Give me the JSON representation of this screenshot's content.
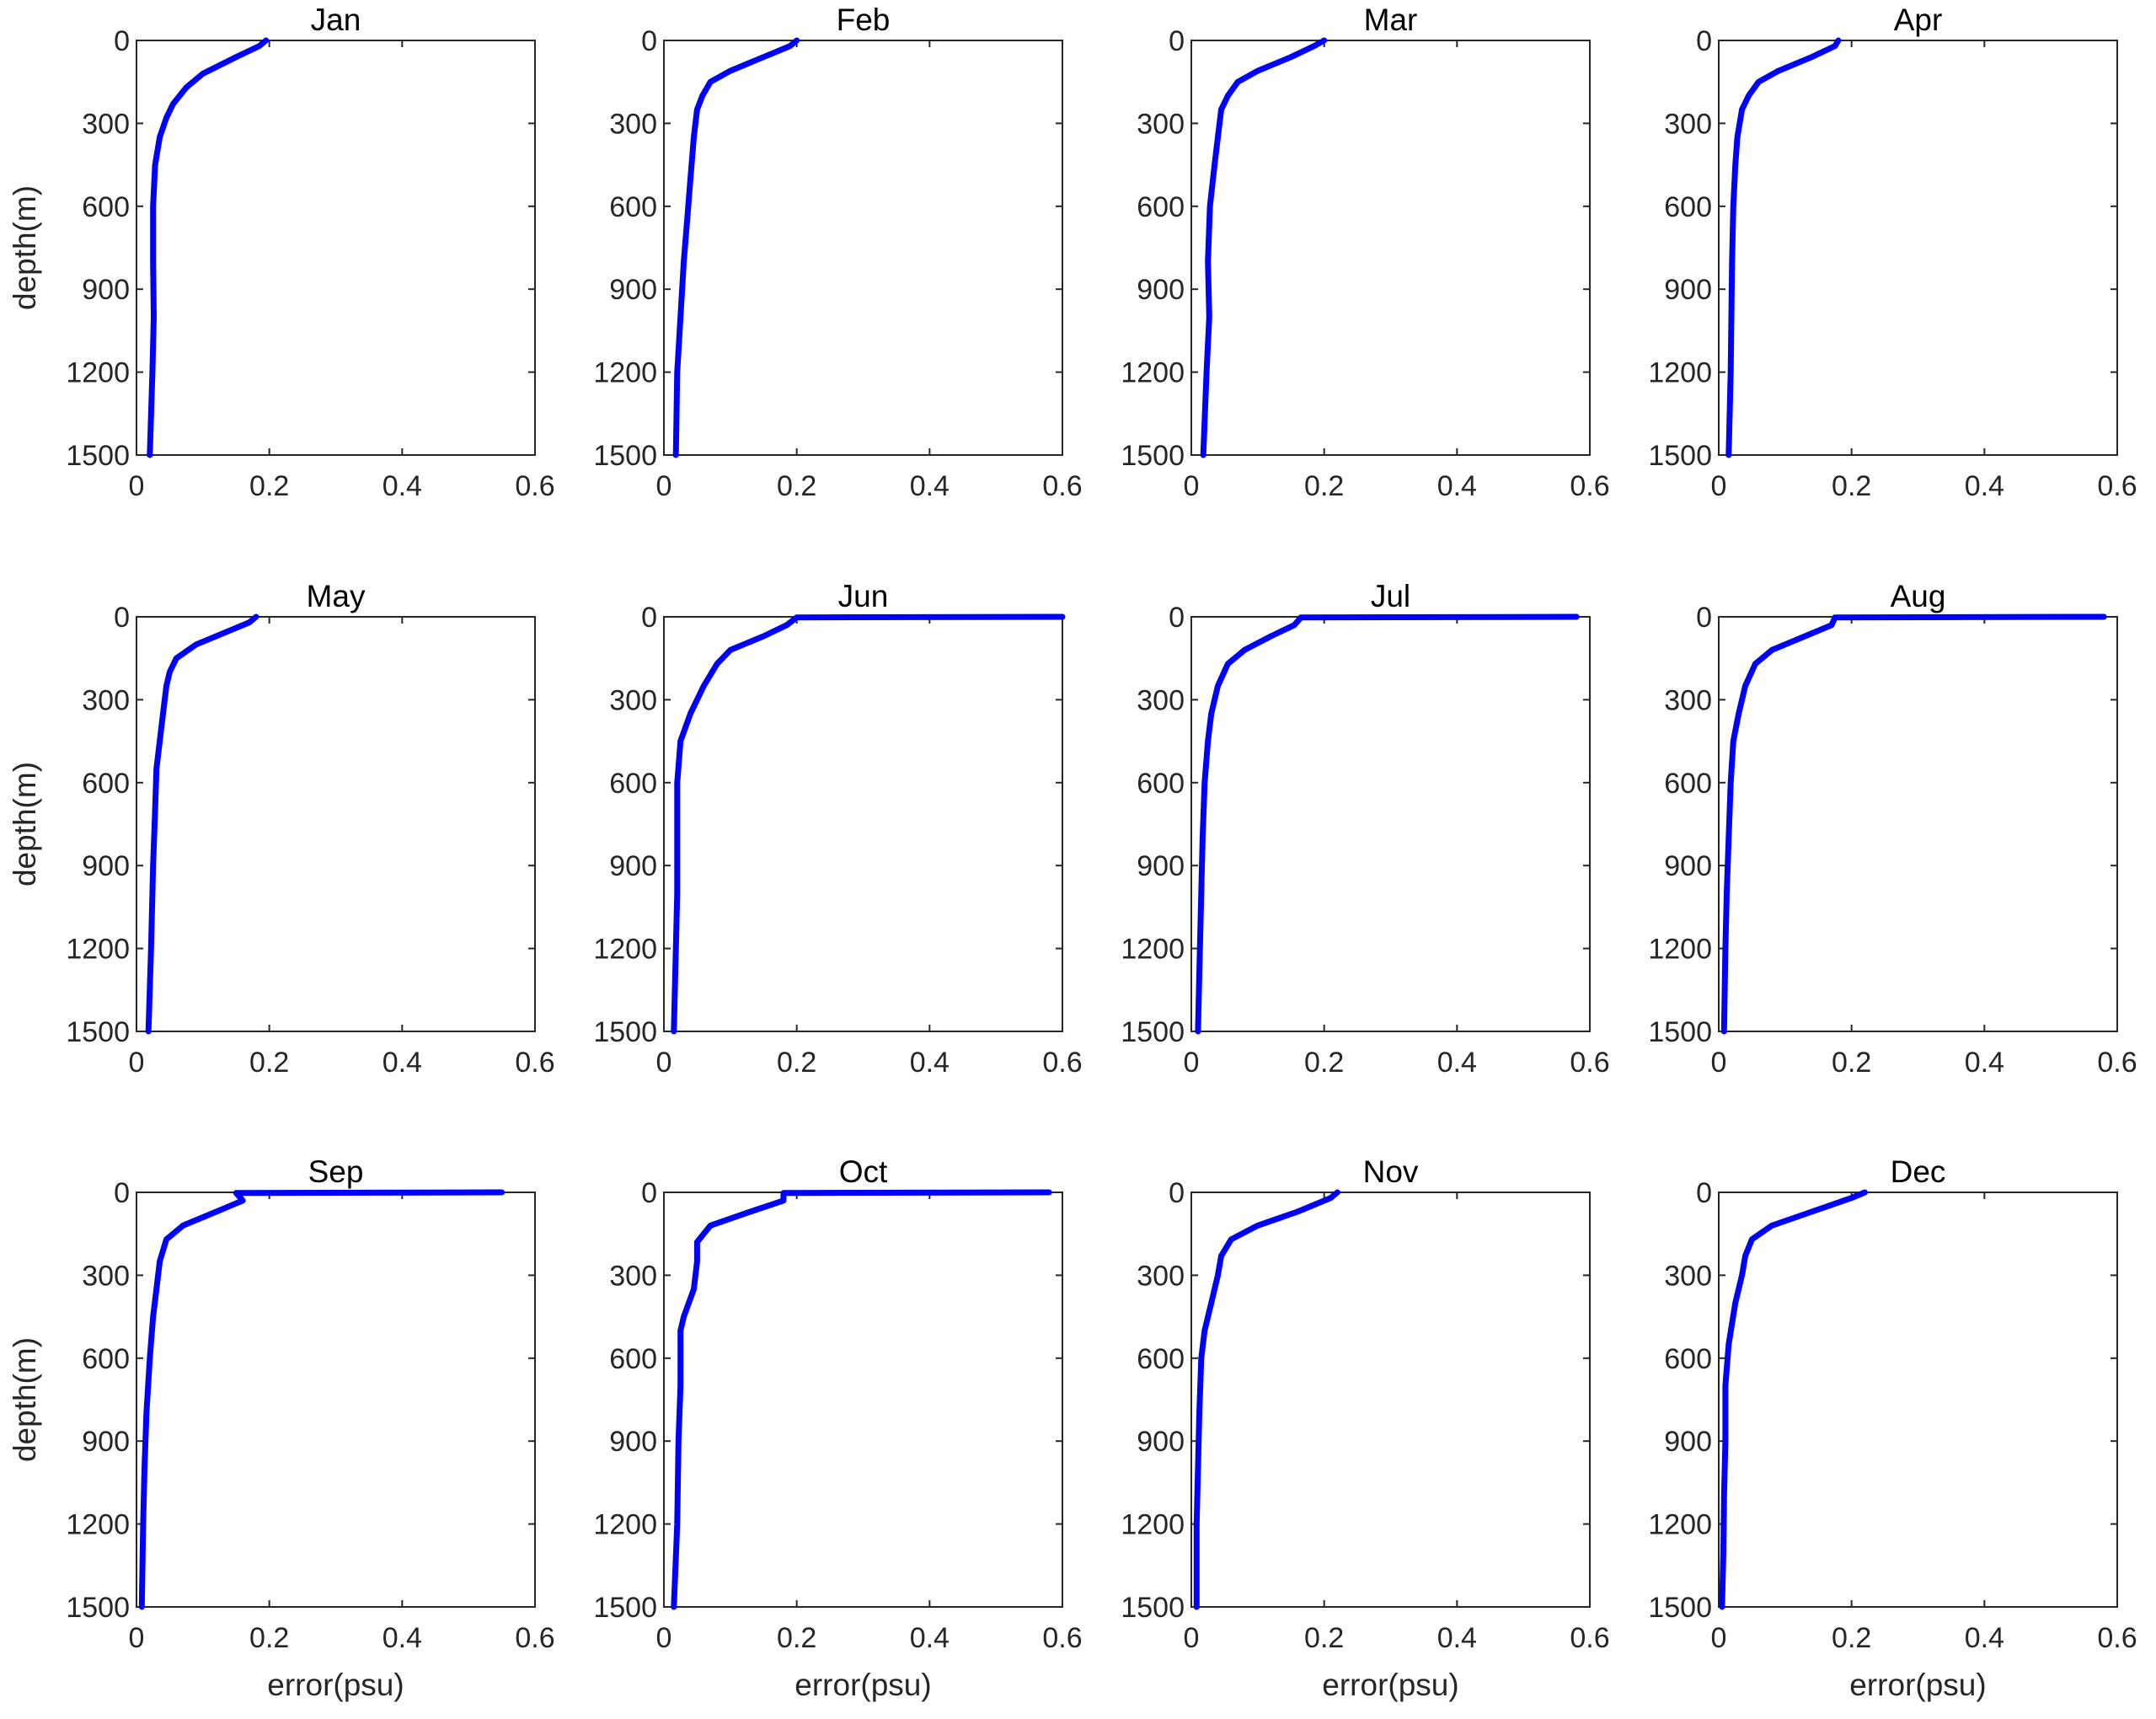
{
  "chart_data": {
    "type": "line",
    "layout": "3x4 small multiples",
    "line_color": "#0000ff",
    "frame_color": "#262626",
    "xlabel": "error(psu)",
    "ylabel": "depth(m)",
    "xlim": [
      0,
      0.6
    ],
    "ylim": [
      1500,
      0
    ],
    "y_reversed": true,
    "grid": false,
    "xticks": [
      0,
      0.2,
      0.4,
      0.6
    ],
    "xtick_labels": [
      "0",
      "0.2",
      "0.4",
      "0.6"
    ],
    "yticks": [
      0,
      300,
      600,
      900,
      1200,
      1500
    ],
    "ytick_labels": [
      "0",
      "300",
      "600",
      "900",
      "1200",
      "1500"
    ],
    "panels": [
      {
        "title": "Jan",
        "x": [
          0.195,
          0.185,
          0.15,
          0.1,
          0.075,
          0.055,
          0.045,
          0.035,
          0.028,
          0.025,
          0.025,
          0.026,
          0.024,
          0.02
        ],
        "y": [
          0,
          20,
          60,
          120,
          170,
          230,
          280,
          350,
          450,
          600,
          800,
          1000,
          1200,
          1500
        ]
      },
      {
        "title": "Feb",
        "x": [
          0.2,
          0.19,
          0.15,
          0.1,
          0.07,
          0.058,
          0.05,
          0.045,
          0.04,
          0.035,
          0.03,
          0.025,
          0.02,
          0.018
        ],
        "y": [
          0,
          20,
          60,
          110,
          150,
          200,
          250,
          350,
          500,
          650,
          800,
          1000,
          1200,
          1500
        ]
      },
      {
        "title": "Mar",
        "x": [
          0.2,
          0.185,
          0.15,
          0.1,
          0.07,
          0.055,
          0.045,
          0.04,
          0.035,
          0.028,
          0.025,
          0.027,
          0.023,
          0.018
        ],
        "y": [
          0,
          20,
          60,
          110,
          150,
          200,
          250,
          350,
          450,
          600,
          800,
          1000,
          1200,
          1500
        ]
      },
      {
        "title": "Apr",
        "x": [
          0.18,
          0.175,
          0.14,
          0.09,
          0.06,
          0.045,
          0.035,
          0.028,
          0.025,
          0.022,
          0.02,
          0.019,
          0.018,
          0.015
        ],
        "y": [
          0,
          20,
          60,
          110,
          150,
          200,
          250,
          350,
          450,
          600,
          800,
          1000,
          1200,
          1500
        ]
      },
      {
        "title": "May",
        "x": [
          0.18,
          0.17,
          0.13,
          0.09,
          0.06,
          0.05,
          0.045,
          0.04,
          0.035,
          0.03,
          0.028,
          0.025,
          0.022,
          0.018
        ],
        "y": [
          0,
          20,
          60,
          100,
          150,
          200,
          250,
          350,
          450,
          550,
          700,
          900,
          1200,
          1500
        ]
      },
      {
        "title": "Jun",
        "x": [
          0.6,
          0.2,
          0.185,
          0.15,
          0.1,
          0.08,
          0.06,
          0.04,
          0.025,
          0.02,
          0.02,
          0.02,
          0.018,
          0.015
        ],
        "y": [
          0,
          2,
          30,
          70,
          120,
          170,
          250,
          350,
          450,
          600,
          800,
          1000,
          1200,
          1500
        ]
      },
      {
        "title": "Jul",
        "x": [
          0.58,
          0.165,
          0.155,
          0.12,
          0.08,
          0.055,
          0.04,
          0.03,
          0.025,
          0.02,
          0.017,
          0.015,
          0.013,
          0.01
        ],
        "y": [
          0,
          2,
          30,
          70,
          120,
          170,
          250,
          350,
          450,
          600,
          800,
          1000,
          1200,
          1500
        ]
      },
      {
        "title": "Aug",
        "x": [
          0.58,
          0.175,
          0.17,
          0.13,
          0.08,
          0.055,
          0.04,
          0.03,
          0.022,
          0.018,
          0.015,
          0.012,
          0.01,
          0.008
        ],
        "y": [
          0,
          2,
          30,
          70,
          120,
          170,
          250,
          350,
          450,
          600,
          800,
          1000,
          1200,
          1500
        ]
      },
      {
        "title": "Sep",
        "x": [
          0.55,
          0.15,
          0.16,
          0.12,
          0.07,
          0.045,
          0.035,
          0.03,
          0.025,
          0.02,
          0.015,
          0.012,
          0.01,
          0.008
        ],
        "y": [
          0,
          2,
          30,
          70,
          120,
          170,
          250,
          350,
          450,
          600,
          800,
          1000,
          1200,
          1500
        ]
      },
      {
        "title": "Oct",
        "x": [
          0.58,
          0.18,
          0.18,
          0.13,
          0.07,
          0.05,
          0.05,
          0.045,
          0.03,
          0.025,
          0.025,
          0.022,
          0.02,
          0.015
        ],
        "y": [
          0,
          2,
          30,
          70,
          120,
          180,
          250,
          350,
          450,
          500,
          700,
          900,
          1200,
          1500
        ]
      },
      {
        "title": "Nov",
        "x": [
          0.22,
          0.21,
          0.16,
          0.1,
          0.06,
          0.045,
          0.04,
          0.03,
          0.02,
          0.015,
          0.012,
          0.01,
          0.008,
          0.008
        ],
        "y": [
          0,
          20,
          70,
          120,
          170,
          230,
          300,
          400,
          500,
          600,
          800,
          1000,
          1200,
          1500
        ]
      },
      {
        "title": "Dec",
        "x": [
          0.22,
          0.2,
          0.14,
          0.08,
          0.05,
          0.04,
          0.035,
          0.025,
          0.015,
          0.01,
          0.01,
          0.008,
          0.007,
          0.005
        ],
        "y": [
          0,
          20,
          70,
          120,
          170,
          230,
          300,
          400,
          550,
          700,
          900,
          1100,
          1300,
          1500
        ]
      }
    ]
  }
}
